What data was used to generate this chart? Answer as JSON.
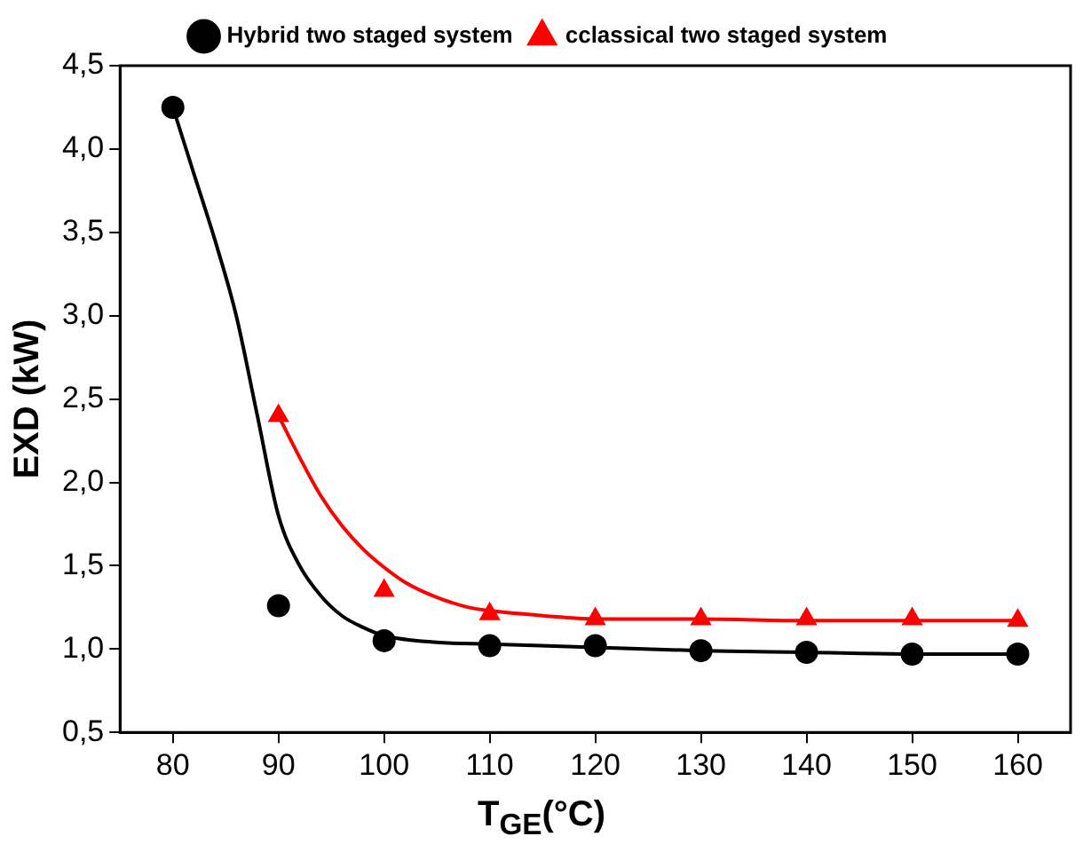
{
  "chart_data": {
    "type": "scatter",
    "xlabel": "T$_{GE}$(°C)",
    "ylabel": "EXD (kW)",
    "xlim": [
      75,
      165
    ],
    "xticks": [
      80,
      90,
      100,
      110,
      120,
      130,
      140,
      150,
      160
    ],
    "ylim": [
      0.5,
      4.5
    ],
    "yticks": [
      {
        "value": 0.5,
        "label": "0,5"
      },
      {
        "value": 1,
        "label": "1,0"
      },
      {
        "value": 1.5,
        "label": "1,5"
      },
      {
        "value": 2,
        "label": "2,0"
      },
      {
        "value": 2.5,
        "label": "2,5"
      },
      {
        "value": 3,
        "label": "3,0"
      },
      {
        "value": 3.5,
        "label": "3,5"
      },
      {
        "value": 4,
        "label": "4,0"
      },
      {
        "value": 4.5,
        "label": "4,5"
      }
    ],
    "legend": "top",
    "grid": false,
    "series": [
      {
        "type": "line",
        "color": "#000000",
        "marker": "none",
        "x": [
          80,
          82,
          84,
          86,
          88,
          90,
          92,
          94,
          96,
          98,
          100,
          105,
          110,
          120,
          130,
          140,
          150,
          160
        ],
        "values": [
          4.25,
          3.85,
          3.45,
          3.0,
          2.4,
          1.8,
          1.5,
          1.32,
          1.2,
          1.13,
          1.08,
          1.04,
          1.03,
          1.01,
          0.99,
          0.98,
          0.97,
          0.97
        ]
      },
      {
        "type": "line",
        "color": "#ff0000",
        "marker": "none",
        "x": [
          90,
          92,
          94,
          96,
          98,
          100,
          102,
          105,
          108,
          110,
          115,
          120,
          130,
          140,
          150,
          160
        ],
        "values": [
          2.4,
          2.15,
          1.92,
          1.74,
          1.6,
          1.49,
          1.4,
          1.31,
          1.25,
          1.23,
          1.2,
          1.18,
          1.18,
          1.17,
          1.17,
          1.17
        ]
      },
      {
        "name": "Hybrid two staged system",
        "color": "#000000",
        "marker": "circle",
        "x": [
          80,
          90,
          100,
          110,
          120,
          130,
          140,
          150,
          160
        ],
        "values": [
          4.25,
          1.26,
          1.05,
          1.02,
          1.02,
          0.99,
          0.98,
          0.97,
          0.97
        ]
      },
      {
        "name": "cclassical two staged system",
        "color": "#ff0000",
        "marker": "triangle",
        "x": [
          90,
          100,
          110,
          120,
          130,
          140,
          150,
          160
        ],
        "values": [
          2.4,
          1.35,
          1.21,
          1.18,
          1.18,
          1.18,
          1.18,
          1.17
        ]
      }
    ]
  }
}
